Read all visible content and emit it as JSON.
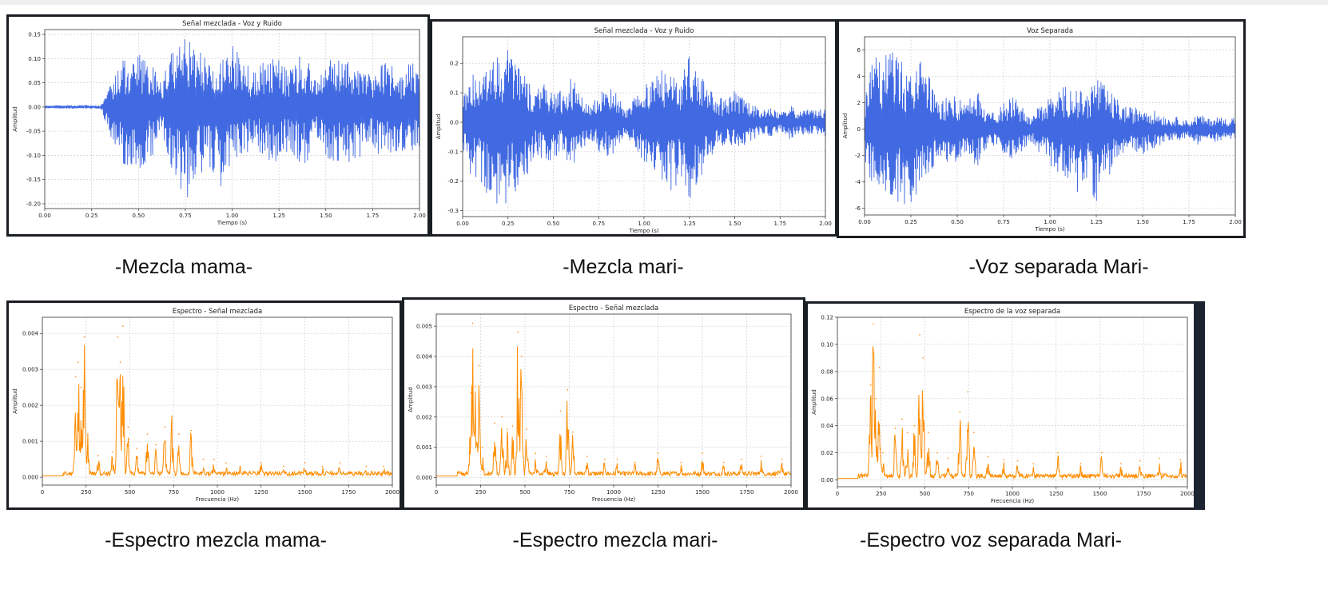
{
  "charts": [
    {
      "id": "wave-mama",
      "chart_data": {
        "type": "line",
        "title": "Señal mezclada - Voz y Ruido",
        "xlabel": "Tiempo (s)",
        "ylabel": "Amplitud",
        "xlim": [
          0,
          2
        ],
        "ylim": [
          -0.21,
          0.16
        ],
        "xticks": [
          "0.00",
          "0.25",
          "0.50",
          "0.75",
          "1.00",
          "1.25",
          "1.50",
          "1.75",
          "2.00"
        ],
        "yticks": [
          "0.15",
          "0.10",
          "0.05",
          "0.00",
          "-0.05",
          "-0.10",
          "-0.15",
          "-0.20"
        ],
        "grid": true,
        "color": "#4169e1",
        "envelope": {
          "x": [
            0,
            0.3,
            0.32,
            0.38,
            0.42,
            0.5,
            0.58,
            0.62,
            0.68,
            0.72,
            0.76,
            0.8,
            0.85,
            0.9,
            0.95,
            1.0,
            1.05,
            1.12,
            1.18,
            1.25,
            1.3,
            1.35,
            1.4,
            1.45,
            1.5,
            1.55,
            1.6,
            1.65,
            1.7,
            1.75,
            1.8,
            1.85,
            1.9,
            1.95,
            2.0
          ],
          "upper": [
            0.003,
            0.004,
            0.02,
            0.07,
            0.1,
            0.11,
            0.09,
            0.05,
            0.12,
            0.14,
            0.15,
            0.13,
            0.11,
            0.09,
            0.12,
            0.13,
            0.1,
            0.07,
            0.1,
            0.1,
            0.08,
            0.11,
            0.1,
            0.05,
            0.1,
            0.1,
            0.11,
            0.1,
            0.08,
            0.07,
            0.1,
            0.09,
            0.06,
            0.1,
            0.09
          ],
          "lower": [
            -0.003,
            -0.004,
            -0.03,
            -0.09,
            -0.12,
            -0.13,
            -0.1,
            -0.06,
            -0.14,
            -0.17,
            -0.195,
            -0.16,
            -0.13,
            -0.14,
            -0.17,
            -0.12,
            -0.11,
            -0.08,
            -0.12,
            -0.11,
            -0.09,
            -0.12,
            -0.12,
            -0.07,
            -0.11,
            -0.12,
            -0.13,
            -0.11,
            -0.1,
            -0.08,
            -0.11,
            -0.1,
            -0.09,
            -0.1,
            -0.09
          ]
        }
      }
    },
    {
      "id": "wave-mari",
      "chart_data": {
        "type": "line",
        "title": "Señal mezclada - Voz y Ruido",
        "xlabel": "Tiempo (s)",
        "ylabel": "Amplitud",
        "xlim": [
          0,
          2
        ],
        "ylim": [
          -0.32,
          0.29
        ],
        "xticks": [
          "0.00",
          "0.25",
          "0.50",
          "0.75",
          "1.00",
          "1.25",
          "1.50",
          "1.75",
          "2.00"
        ],
        "yticks": [
          "0.2",
          "0.1",
          "0.0",
          "-0.1",
          "-0.2",
          "-0.3"
        ],
        "grid": true,
        "color": "#4169e1",
        "envelope": {
          "x": [
            0,
            0.05,
            0.1,
            0.15,
            0.2,
            0.25,
            0.3,
            0.35,
            0.4,
            0.45,
            0.5,
            0.55,
            0.6,
            0.65,
            0.7,
            0.75,
            0.8,
            0.85,
            0.9,
            0.95,
            1.0,
            1.05,
            1.1,
            1.15,
            1.2,
            1.25,
            1.3,
            1.35,
            1.4,
            1.45,
            1.5,
            1.55,
            1.6,
            1.65,
            1.7,
            1.75,
            1.8,
            1.85,
            1.9,
            1.95,
            2.0
          ],
          "upper": [
            0.08,
            0.16,
            0.17,
            0.2,
            0.24,
            0.26,
            0.22,
            0.16,
            0.1,
            0.14,
            0.13,
            0.1,
            0.16,
            0.1,
            0.06,
            0.1,
            0.12,
            0.1,
            0.04,
            0.1,
            0.13,
            0.15,
            0.18,
            0.16,
            0.14,
            0.26,
            0.17,
            0.13,
            0.09,
            0.08,
            0.11,
            0.08,
            0.06,
            0.04,
            0.05,
            0.03,
            0.06,
            0.04,
            0.05,
            0.04,
            0.05
          ],
          "lower": [
            -0.1,
            -0.19,
            -0.22,
            -0.26,
            -0.28,
            -0.29,
            -0.25,
            -0.2,
            -0.1,
            -0.14,
            -0.13,
            -0.1,
            -0.16,
            -0.1,
            -0.06,
            -0.1,
            -0.12,
            -0.1,
            -0.04,
            -0.1,
            -0.14,
            -0.17,
            -0.2,
            -0.24,
            -0.2,
            -0.27,
            -0.2,
            -0.14,
            -0.09,
            -0.08,
            -0.1,
            -0.08,
            -0.06,
            -0.04,
            -0.05,
            -0.03,
            -0.06,
            -0.04,
            -0.05,
            -0.04,
            -0.05
          ]
        }
      }
    },
    {
      "id": "wave-sep",
      "chart_data": {
        "type": "line",
        "title": "Voz Separada",
        "xlabel": "Tiempo (s)",
        "ylabel": "Amplitud",
        "xlim": [
          0,
          2
        ],
        "ylim": [
          -6.5,
          7
        ],
        "xticks": [
          "0.00",
          "0.25",
          "0.50",
          "0.75",
          "1.00",
          "1.25",
          "1.50",
          "1.75",
          "2.00"
        ],
        "yticks": [
          "6",
          "4",
          "2",
          "0",
          "-2",
          "-4",
          "-6"
        ],
        "grid": true,
        "color": "#4169e1",
        "envelope": {
          "x": [
            0,
            0.05,
            0.1,
            0.15,
            0.2,
            0.25,
            0.3,
            0.35,
            0.4,
            0.45,
            0.5,
            0.55,
            0.6,
            0.65,
            0.7,
            0.75,
            0.8,
            0.85,
            0.9,
            0.95,
            1.0,
            1.05,
            1.1,
            1.15,
            1.2,
            1.25,
            1.3,
            1.35,
            1.4,
            1.45,
            1.5,
            1.55,
            1.6,
            1.65,
            1.7,
            1.75,
            1.8,
            1.85,
            1.9,
            1.95,
            2.0
          ],
          "upper": [
            2.5,
            5.5,
            5.8,
            6.2,
            5.2,
            4.6,
            5.2,
            4.0,
            2.0,
            2.5,
            2.5,
            2.0,
            3.2,
            2.0,
            1.2,
            2.0,
            2.4,
            2.0,
            0.9,
            2.0,
            2.5,
            3.0,
            3.5,
            3.0,
            2.8,
            4.3,
            3.2,
            2.5,
            1.8,
            1.6,
            2.0,
            1.5,
            1.2,
            0.8,
            1.0,
            0.6,
            1.2,
            0.8,
            1.0,
            0.8,
            1.0
          ],
          "lower": [
            -3.0,
            -4.5,
            -5.0,
            -5.5,
            -5.8,
            -5.6,
            -4.8,
            -3.8,
            -2.0,
            -2.5,
            -2.5,
            -2.0,
            -3.0,
            -2.0,
            -1.2,
            -2.0,
            -2.4,
            -2.0,
            -0.9,
            -2.0,
            -2.8,
            -3.4,
            -4.0,
            -4.8,
            -4.0,
            -5.6,
            -4.0,
            -2.8,
            -1.8,
            -1.6,
            -2.0,
            -1.5,
            -1.2,
            -0.8,
            -1.0,
            -0.6,
            -1.2,
            -0.8,
            -1.0,
            -0.8,
            -1.0
          ]
        }
      }
    },
    {
      "id": "spec-mama",
      "chart_data": {
        "type": "area",
        "title": "Espectro - Señal mezclada",
        "xlabel": "Frecuencia (Hz)",
        "ylabel": "Amplitud",
        "xlim": [
          0,
          2000
        ],
        "ylim": [
          -0.00022,
          0.00445
        ],
        "xticks": [
          "0",
          "250",
          "500",
          "750",
          "1000",
          "1250",
          "1500",
          "1750",
          "2000"
        ],
        "yticks": [
          "0.004",
          "0.003",
          "0.002",
          "0.001",
          "0.000"
        ],
        "grid": true,
        "color": "#ff8c00",
        "peaks": [
          {
            "x": 190,
            "y": 0.0028
          },
          {
            "x": 205,
            "y": 0.0032
          },
          {
            "x": 220,
            "y": 0.0025
          },
          {
            "x": 240,
            "y": 0.0039
          },
          {
            "x": 260,
            "y": 0.0012
          },
          {
            "x": 320,
            "y": 0.0006
          },
          {
            "x": 400,
            "y": 0.0007
          },
          {
            "x": 430,
            "y": 0.0039
          },
          {
            "x": 445,
            "y": 0.0032
          },
          {
            "x": 460,
            "y": 0.0042
          },
          {
            "x": 490,
            "y": 0.0014
          },
          {
            "x": 540,
            "y": 0.0008
          },
          {
            "x": 600,
            "y": 0.0012
          },
          {
            "x": 650,
            "y": 0.0009
          },
          {
            "x": 700,
            "y": 0.0014
          },
          {
            "x": 740,
            "y": 0.0017
          },
          {
            "x": 780,
            "y": 0.0012
          },
          {
            "x": 850,
            "y": 0.0013
          },
          {
            "x": 920,
            "y": 0.0005
          },
          {
            "x": 980,
            "y": 0.0005
          },
          {
            "x": 1050,
            "y": 0.0004
          },
          {
            "x": 1130,
            "y": 0.0003
          },
          {
            "x": 1250,
            "y": 0.0004
          },
          {
            "x": 1380,
            "y": 0.0003
          },
          {
            "x": 1500,
            "y": 0.0004
          },
          {
            "x": 1600,
            "y": 0.0003
          },
          {
            "x": 1700,
            "y": 0.0004
          },
          {
            "x": 1850,
            "y": 0.0003
          },
          {
            "x": 1950,
            "y": 0.0003
          }
        ]
      }
    },
    {
      "id": "spec-mari",
      "chart_data": {
        "type": "area",
        "title": "Espectro - Señal mezclada",
        "xlabel": "Frecuencia (Hz)",
        "ylabel": "Amplitud",
        "xlim": [
          0,
          2000
        ],
        "ylim": [
          -0.00025,
          0.0054
        ],
        "xticks": [
          "0",
          "250",
          "500",
          "750",
          "1000",
          "1250",
          "1500",
          "1750",
          "2000"
        ],
        "yticks": [
          "0.005",
          "0.004",
          "0.003",
          "0.002",
          "0.001",
          "0.000"
        ],
        "grid": true,
        "color": "#ff8c00",
        "peaks": [
          {
            "x": 195,
            "y": 0.0028
          },
          {
            "x": 205,
            "y": 0.0051
          },
          {
            "x": 220,
            "y": 0.003
          },
          {
            "x": 240,
            "y": 0.0037
          },
          {
            "x": 260,
            "y": 0.001
          },
          {
            "x": 330,
            "y": 0.0018
          },
          {
            "x": 370,
            "y": 0.002
          },
          {
            "x": 400,
            "y": 0.0016
          },
          {
            "x": 430,
            "y": 0.0017
          },
          {
            "x": 460,
            "y": 0.0048
          },
          {
            "x": 480,
            "y": 0.004
          },
          {
            "x": 510,
            "y": 0.0016
          },
          {
            "x": 560,
            "y": 0.0008
          },
          {
            "x": 620,
            "y": 0.0007
          },
          {
            "x": 700,
            "y": 0.0022
          },
          {
            "x": 740,
            "y": 0.0029
          },
          {
            "x": 770,
            "y": 0.0015
          },
          {
            "x": 850,
            "y": 0.0007
          },
          {
            "x": 950,
            "y": 0.0006
          },
          {
            "x": 1020,
            "y": 0.0006
          },
          {
            "x": 1120,
            "y": 0.0005
          },
          {
            "x": 1250,
            "y": 0.0008
          },
          {
            "x": 1380,
            "y": 0.0005
          },
          {
            "x": 1500,
            "y": 0.0008
          },
          {
            "x": 1620,
            "y": 0.0005
          },
          {
            "x": 1720,
            "y": 0.0006
          },
          {
            "x": 1830,
            "y": 0.0007
          },
          {
            "x": 1950,
            "y": 0.0006
          }
        ]
      }
    },
    {
      "id": "spec-sep",
      "chart_data": {
        "type": "area",
        "title": "Espectro de la voz separada",
        "xlabel": "Frecuencia (Hz)",
        "ylabel": "Amplitud",
        "xlim": [
          0,
          2000
        ],
        "ylim": [
          -0.005,
          0.12
        ],
        "xticks": [
          "0",
          "250",
          "500",
          "750",
          "1000",
          "1250",
          "1500",
          "1750",
          "2000"
        ],
        "yticks": [
          "0.12",
          "0.10",
          "0.08",
          "0.06",
          "0.04",
          "0.02",
          "0.00"
        ],
        "grid": true,
        "color": "#ff8c00",
        "peaks": [
          {
            "x": 190,
            "y": 0.07
          },
          {
            "x": 205,
            "y": 0.115
          },
          {
            "x": 220,
            "y": 0.06
          },
          {
            "x": 240,
            "y": 0.083
          },
          {
            "x": 260,
            "y": 0.02
          },
          {
            "x": 330,
            "y": 0.038
          },
          {
            "x": 370,
            "y": 0.045
          },
          {
            "x": 400,
            "y": 0.035
          },
          {
            "x": 440,
            "y": 0.04
          },
          {
            "x": 470,
            "y": 0.107
          },
          {
            "x": 490,
            "y": 0.09
          },
          {
            "x": 520,
            "y": 0.035
          },
          {
            "x": 570,
            "y": 0.02
          },
          {
            "x": 630,
            "y": 0.016
          },
          {
            "x": 700,
            "y": 0.05
          },
          {
            "x": 745,
            "y": 0.065
          },
          {
            "x": 780,
            "y": 0.035
          },
          {
            "x": 860,
            "y": 0.017
          },
          {
            "x": 950,
            "y": 0.015
          },
          {
            "x": 1030,
            "y": 0.014
          },
          {
            "x": 1120,
            "y": 0.012
          },
          {
            "x": 1260,
            "y": 0.02
          },
          {
            "x": 1390,
            "y": 0.012
          },
          {
            "x": 1510,
            "y": 0.02
          },
          {
            "x": 1620,
            "y": 0.012
          },
          {
            "x": 1730,
            "y": 0.014
          },
          {
            "x": 1840,
            "y": 0.016
          },
          {
            "x": 1960,
            "y": 0.015
          }
        ]
      }
    }
  ],
  "captions": {
    "wave_mama": "-Mezcla mama-",
    "wave_mari": "-Mezcla mari-",
    "wave_sep": "-Voz separada Mari-",
    "spec_mama": "-Espectro mezcla mama-",
    "spec_mari": "-Espectro mezcla mari-",
    "spec_sep": "-Espectro voz separada Mari-"
  }
}
